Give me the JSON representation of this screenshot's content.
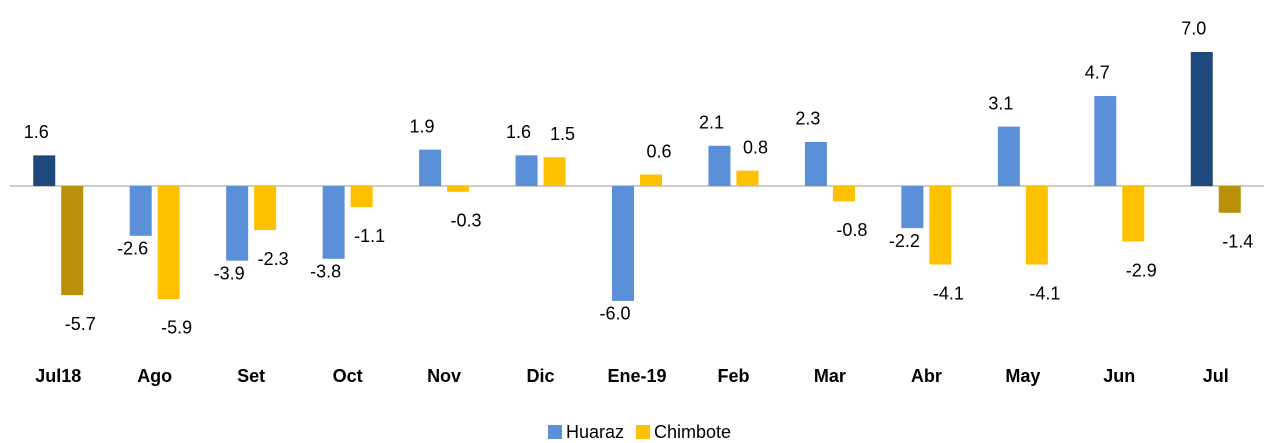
{
  "chart_data": {
    "type": "bar",
    "categories": [
      "Jul18",
      "Ago",
      "Set",
      "Oct",
      "Nov",
      "Dic",
      "Ene-19",
      "Feb",
      "Mar",
      "Abr",
      "May",
      "Jun",
      "Jul"
    ],
    "series": [
      {
        "name": "Huaraz",
        "color": "#5b8fd8",
        "colors": [
          "#1f497d",
          "#5b8fd8",
          "#5b8fd8",
          "#5b8fd8",
          "#5b8fd8",
          "#5b8fd8",
          "#5b8fd8",
          "#5b8fd8",
          "#5b8fd8",
          "#5b8fd8",
          "#5b8fd8",
          "#5b8fd8",
          "#1f497d"
        ],
        "values": [
          1.6,
          -2.6,
          -3.9,
          -3.8,
          1.9,
          1.6,
          -6.0,
          2.1,
          2.3,
          -2.2,
          3.1,
          4.7,
          7.0
        ],
        "value_labels": [
          "1.6",
          "-2.6",
          "-3.9",
          "-3.8",
          "1.9",
          "1.6",
          "-6.0",
          "2.1",
          "2.3",
          "-2.2",
          "3.1",
          "4.7",
          "7.0"
        ]
      },
      {
        "name": "Chimbote",
        "color": "#ffc000",
        "colors": [
          "#b8900a",
          "#ffc000",
          "#ffc000",
          "#ffc000",
          "#ffc000",
          "#ffc000",
          "#ffc000",
          "#ffc000",
          "#ffc000",
          "#ffc000",
          "#ffc000",
          "#ffc000",
          "#b8900a"
        ],
        "values": [
          -5.7,
          -5.9,
          -2.3,
          -1.1,
          -0.3,
          1.5,
          0.6,
          0.8,
          -0.8,
          -4.1,
          -4.1,
          -2.9,
          -1.4
        ],
        "value_labels": [
          "-5.7",
          "-5.9",
          "-2.3",
          "-1.1",
          "-0.3",
          "1.5",
          "0.6",
          "0.8",
          "-0.8",
          "-4.1",
          "-4.1",
          "-2.9",
          "-1.4"
        ]
      }
    ],
    "legend": "bottom"
  }
}
